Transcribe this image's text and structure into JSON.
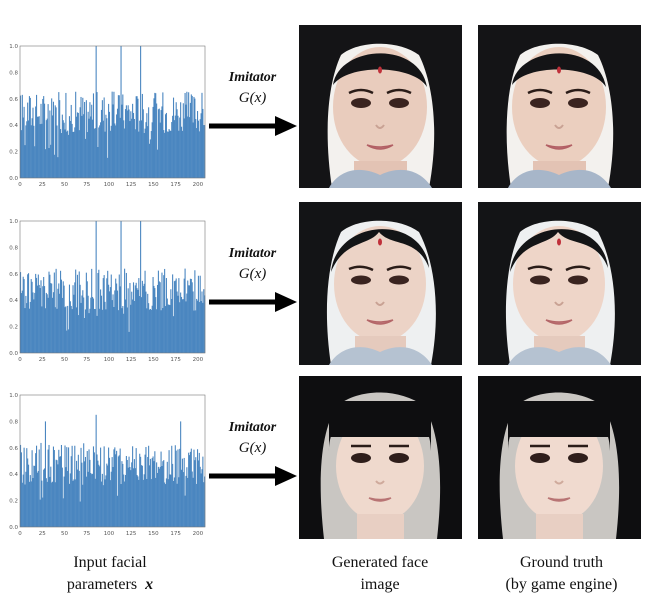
{
  "rows": [
    {
      "imitator_label": "Imitator",
      "imitator_fn": "G(x)"
    },
    {
      "imitator_label": "Imitator",
      "imitator_fn": "G(x)"
    },
    {
      "imitator_label": "Imitator",
      "imitator_fn": "G(x)"
    }
  ],
  "captions": {
    "input_line1": "Input facial",
    "input_line2": "parameters",
    "input_symbol": "x",
    "generated_line1": "Generated face",
    "generated_line2": "image",
    "truth_line1": "Ground truth",
    "truth_line2": "(by game engine)"
  },
  "colors": {
    "bar": "#4a86c0",
    "axis": "#777777",
    "arrow": "#000000"
  },
  "chart_data": [
    {
      "type": "bar",
      "xlim": [
        0,
        208
      ],
      "ylim": [
        0,
        1.0
      ],
      "xticks": [
        "0",
        "25",
        "50",
        "75",
        "100",
        "125",
        "150",
        "175",
        "200"
      ],
      "yticks": [
        "0.0",
        "0.2",
        "0.4",
        "0.6",
        "0.8",
        "1.0"
      ],
      "spikes": [
        {
          "x": 85,
          "y": 1.0
        },
        {
          "x": 113,
          "y": 1.0
        },
        {
          "x": 135,
          "y": 1.0
        }
      ],
      "base_mean": 0.5
    },
    {
      "type": "bar",
      "xlim": [
        0,
        208
      ],
      "ylim": [
        0,
        1.0
      ],
      "xticks": [
        "0",
        "25",
        "50",
        "75",
        "100",
        "125",
        "150",
        "175",
        "200"
      ],
      "yticks": [
        "0.0",
        "0.2",
        "0.4",
        "0.6",
        "0.8",
        "1.0"
      ],
      "spikes": [
        {
          "x": 85,
          "y": 1.0
        },
        {
          "x": 113,
          "y": 1.0
        },
        {
          "x": 135,
          "y": 1.0
        }
      ],
      "base_mean": 0.48
    },
    {
      "type": "bar",
      "xlim": [
        0,
        208
      ],
      "ylim": [
        0,
        1.0
      ],
      "xticks": [
        "0",
        "25",
        "50",
        "75",
        "100",
        "125",
        "150",
        "175",
        "200"
      ],
      "yticks": [
        "0.0",
        "0.2",
        "0.4",
        "0.6",
        "0.8",
        "1.0"
      ],
      "spikes": [
        {
          "x": 28,
          "y": 0.8
        },
        {
          "x": 85,
          "y": 0.85
        },
        {
          "x": 180,
          "y": 0.8
        }
      ],
      "base_mean": 0.48
    }
  ]
}
